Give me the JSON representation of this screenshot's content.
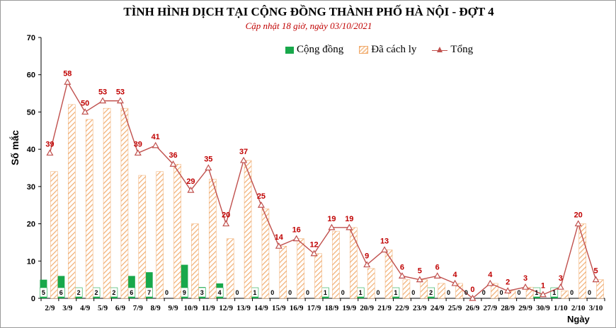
{
  "chart_data": {
    "type": "bar",
    "title": "TÌNH HÌNH DỊCH TẠI CỘNG ĐỒNG THÀNH PHỐ HÀ NỘI - ĐỢT 4",
    "subtitle": "Cập nhật 18 giờ, ngày 03/10/2021",
    "ylabel": "Số mắc",
    "xlabel": "Ngày",
    "ylim": [
      0,
      70
    ],
    "yticks": [
      "0",
      "10",
      "20",
      "30",
      "40",
      "50",
      "60",
      "70"
    ],
    "grid": false,
    "legend_position": "top-right",
    "categories": [
      "2/9",
      "3/9",
      "4/9",
      "5/9",
      "6/9",
      "7/9",
      "8/9",
      "9/9",
      "10/9",
      "11/9",
      "12/9",
      "13/9",
      "14/9",
      "15/9",
      "16/9",
      "17/9",
      "18/9",
      "19/9",
      "20/9",
      "21/9",
      "22/9",
      "23/9",
      "24/9",
      "25/9",
      "26/9",
      "27/9",
      "28/9",
      "29/9",
      "30/9",
      "1/10",
      "2/10",
      "3/10"
    ],
    "series": [
      {
        "name": "Cộng đồng",
        "type": "bar",
        "color": "#18a84b",
        "values": [
          5,
          6,
          2,
          2,
          2,
          6,
          7,
          0,
          9,
          3,
          4,
          0,
          1,
          0,
          0,
          0,
          1,
          0,
          1,
          0,
          1,
          0,
          2,
          0,
          0,
          0,
          0,
          0,
          1,
          1,
          0,
          0
        ]
      },
      {
        "name": "Đã cách ly",
        "type": "bar",
        "color": "#f0a868",
        "pattern": "diagonal-hatch",
        "values": [
          34,
          52,
          48,
          51,
          51,
          33,
          34,
          36,
          20,
          32,
          16,
          37,
          24,
          14,
          16,
          12,
          18,
          19,
          8,
          13,
          5,
          5,
          4,
          4,
          0,
          4,
          2,
          3,
          0,
          2,
          20,
          5
        ]
      },
      {
        "name": "Tổng",
        "type": "line",
        "color": "#c0504d",
        "marker": "triangle",
        "values": [
          39,
          58,
          50,
          53,
          53,
          39,
          41,
          36,
          29,
          35,
          20,
          37,
          25,
          14,
          16,
          12,
          19,
          19,
          9,
          13,
          6,
          5,
          6,
          4,
          0,
          4,
          2,
          3,
          1,
          3,
          20,
          5
        ]
      }
    ]
  }
}
